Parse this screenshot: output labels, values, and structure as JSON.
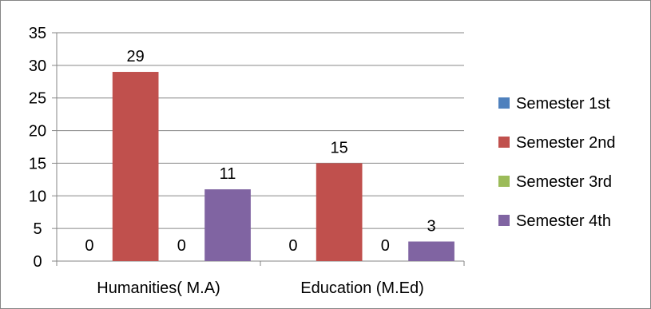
{
  "chart_data": {
    "type": "bar",
    "categories": [
      "Humanities( M.A)",
      "Education (M.Ed)"
    ],
    "series": [
      {
        "name": "Semester  1st",
        "values": [
          0,
          0
        ],
        "color": "#4F81BD"
      },
      {
        "name": "Semester  2nd",
        "values": [
          29,
          15
        ],
        "color": "#C0504D"
      },
      {
        "name": "Semester  3rd",
        "values": [
          0,
          0
        ],
        "color": "#9BBB59"
      },
      {
        "name": "Semester  4th",
        "values": [
          11,
          3
        ],
        "color": "#8064A2"
      }
    ],
    "data_labels": [
      [
        "0",
        "0"
      ],
      [
        "29",
        "15"
      ],
      [
        "0",
        "0"
      ],
      [
        "11",
        "3"
      ]
    ],
    "yticks": [
      "0",
      "5",
      "10",
      "15",
      "20",
      "25",
      "30",
      "35"
    ],
    "ylim": [
      0,
      35
    ],
    "grid": true,
    "legend_position": "right",
    "title": "",
    "xlabel": "",
    "ylabel": ""
  }
}
